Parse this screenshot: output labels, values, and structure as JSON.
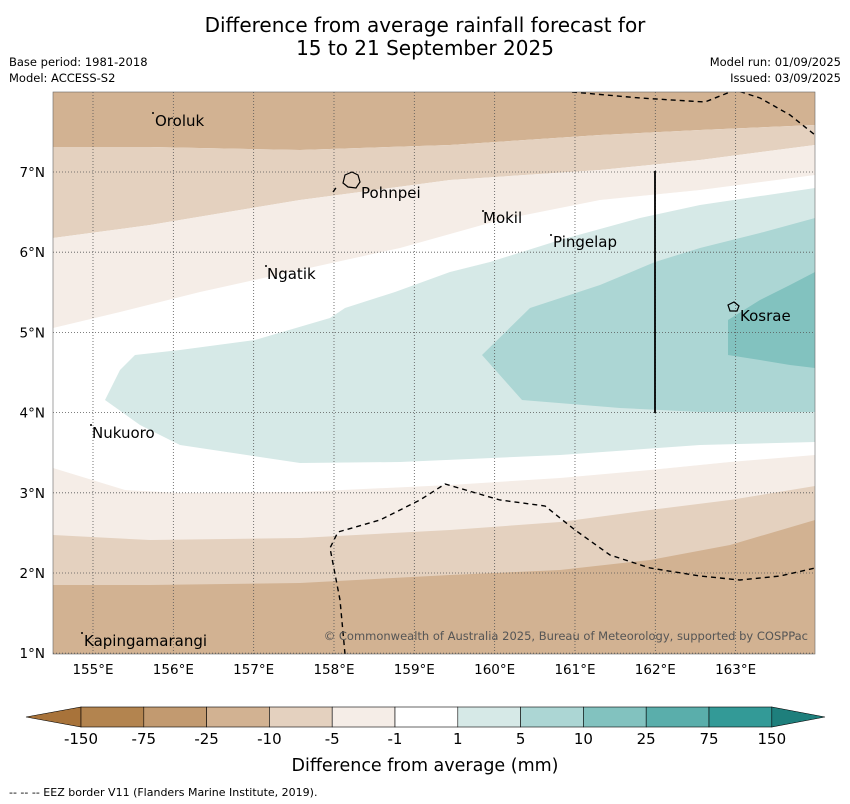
{
  "title_line1": "Difference from average rainfall forecast for",
  "title_line2": "15 to 21 September 2025",
  "base_period": "Base period: 1981-2018",
  "model": "Model: ACCESS-S2",
  "model_run": "Model run: 01/09/2025",
  "issued": "Issued: 03/09/2025",
  "x_ticks": [
    "155°E",
    "156°E",
    "157°E",
    "158°E",
    "159°E",
    "160°E",
    "161°E",
    "162°E",
    "163°E"
  ],
  "y_ticks": [
    "7°N",
    "6°N",
    "5°N",
    "4°N",
    "3°N",
    "2°N",
    "1°N"
  ],
  "places": [
    "Oroluk",
    "Pohnpei",
    "Mokil",
    "Pingelap",
    "Ngatik",
    "Kosrae",
    "Nukuoro",
    "Kapingamarangi"
  ],
  "copyright": "© Commonwealth of Australia 2025, Bureau of Meteorology, supported by COSPPac",
  "colorbar": {
    "ticks": [
      "-150",
      "-75",
      "-25",
      "-10",
      "-5",
      "-1",
      "1",
      "5",
      "10",
      "25",
      "75",
      "150"
    ],
    "colors": [
      "#a8733a",
      "#b3844f",
      "#c29a70",
      "#d2b292",
      "#e4d1bf",
      "#f5ede7",
      "#ffffff",
      "#d6e9e7",
      "#acd6d4",
      "#82c2bf",
      "#5aaeab",
      "#339a97",
      "#1e7f7c"
    ],
    "label": "Difference from average (mm)"
  },
  "footnote": "--  --  -- EEZ border V11 (Flanders Marine Institute, 2019)."
}
